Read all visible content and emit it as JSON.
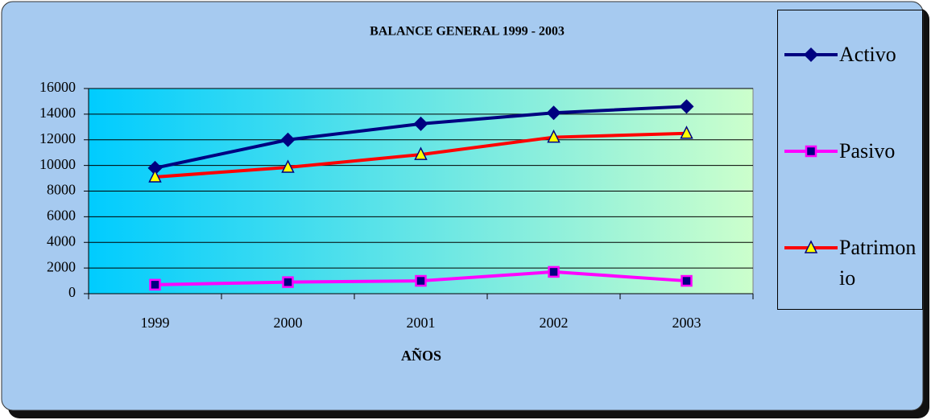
{
  "chart_data": {
    "type": "line",
    "title": "BALANCE GENERAL 1999 - 2003",
    "x_label": "AÑOS",
    "categories": [
      "1999",
      "2000",
      "2001",
      "2002",
      "2003"
    ],
    "series": [
      {
        "name": "Activo",
        "color": "#000080",
        "marker": "diamond",
        "values": [
          9800,
          12000,
          13250,
          14100,
          14600
        ]
      },
      {
        "name": "Pasivo",
        "color": "#ff00ff",
        "marker": "square",
        "values": [
          700,
          900,
          1000,
          1700,
          1000
        ]
      },
      {
        "name": "Patrimonio",
        "color": "#ff0000",
        "marker": "triangle",
        "values": [
          9100,
          9850,
          10850,
          12200,
          12500
        ]
      }
    ],
    "ylim": [
      0,
      16000
    ],
    "yticks": [
      0,
      2000,
      4000,
      6000,
      8000,
      10000,
      12000,
      14000,
      16000
    ],
    "grid": true,
    "legend": "right"
  }
}
